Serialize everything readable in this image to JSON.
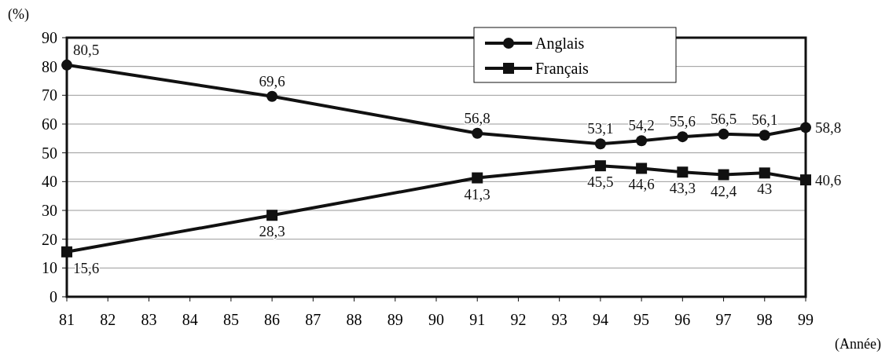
{
  "chart_data": {
    "type": "line",
    "xlabel": "(Année)",
    "ylabel": "(%)",
    "x": [
      81,
      86,
      91,
      94,
      95,
      96,
      97,
      98,
      99
    ],
    "xlim": [
      81,
      99
    ],
    "xticks": [
      81,
      82,
      83,
      84,
      85,
      86,
      87,
      88,
      89,
      90,
      91,
      92,
      93,
      94,
      95,
      96,
      97,
      98,
      99
    ],
    "ylim": [
      0,
      90
    ],
    "yticks": [
      0,
      10,
      20,
      30,
      40,
      50,
      60,
      70,
      80,
      90
    ],
    "grid": "y",
    "legend": "top right",
    "series": [
      {
        "name": "Anglais",
        "color": "#111111",
        "marker": "circle",
        "values": [
          80.5,
          69.6,
          56.8,
          53.1,
          54.2,
          55.6,
          56.5,
          56.1,
          58.8
        ],
        "value_labels": [
          "80,5",
          "69,6",
          "56,8",
          "53,1",
          "54,2",
          "55,6",
          "56,5",
          "56,1",
          "58,8"
        ]
      },
      {
        "name": "Français",
        "color": "#111111",
        "marker": "square",
        "values": [
          15.6,
          28.3,
          41.3,
          45.5,
          44.6,
          43.3,
          42.4,
          43,
          40.6
        ],
        "value_labels": [
          "15,6",
          "28,3",
          "41,3",
          "45,5",
          "44,6",
          "43,3",
          "42,4",
          "43",
          "40,6"
        ]
      }
    ]
  }
}
